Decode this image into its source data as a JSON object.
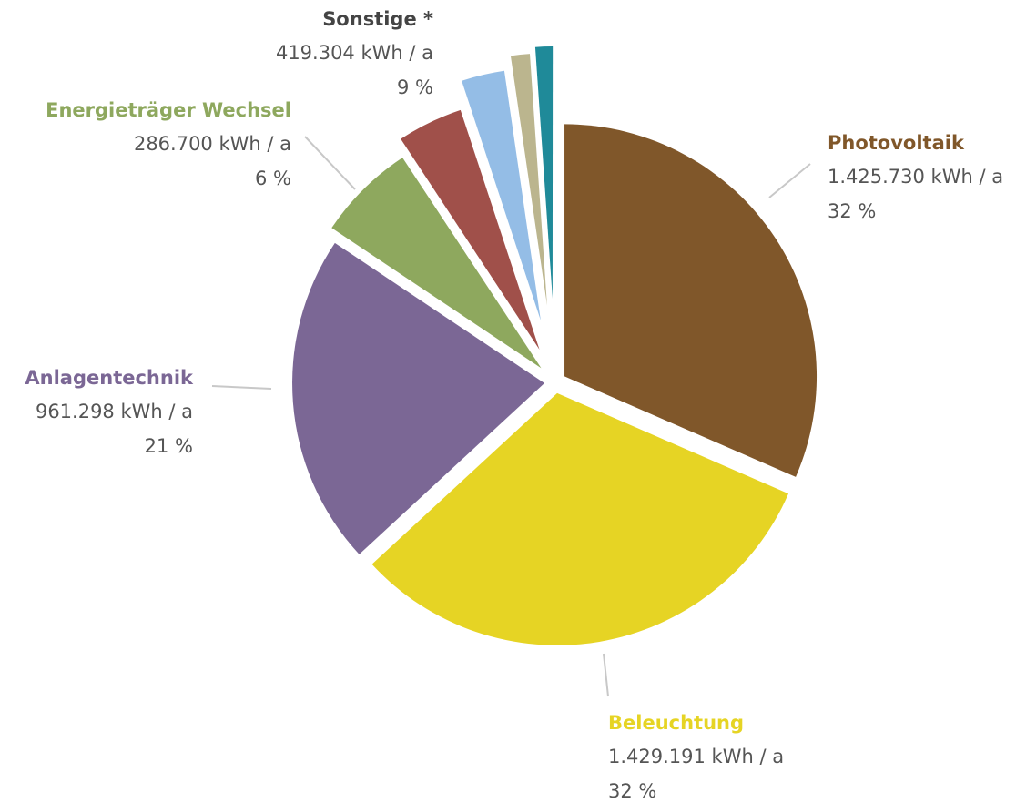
{
  "chart_data": {
    "type": "pie",
    "categories": [
      "Photovoltaik",
      "Beleuchtung",
      "Anlagentechnik",
      "Energieträger Wechsel",
      "Sonstige *"
    ],
    "values": [
      1425730,
      1429191,
      961298,
      286700,
      419304
    ],
    "value_labels": [
      "1.425.730 kWh / a",
      "1.429.191 kWh / a",
      "961.298 kWh / a",
      "286.700 kWh / a",
      "419.304 kWh / a"
    ],
    "percent_labels": [
      "32 %",
      "32 %",
      "21 %",
      "6 %",
      "9 %"
    ],
    "colors": [
      "#80572a",
      "#e6d424",
      "#7b6795",
      "#8ea85e",
      "#444444"
    ],
    "sonstige_parts": {
      "values": [
        190000,
        125000,
        55000,
        50000
      ],
      "colors": [
        "#a0504a",
        "#94bde6",
        "#bbb58e",
        "#1f8a99"
      ]
    }
  }
}
